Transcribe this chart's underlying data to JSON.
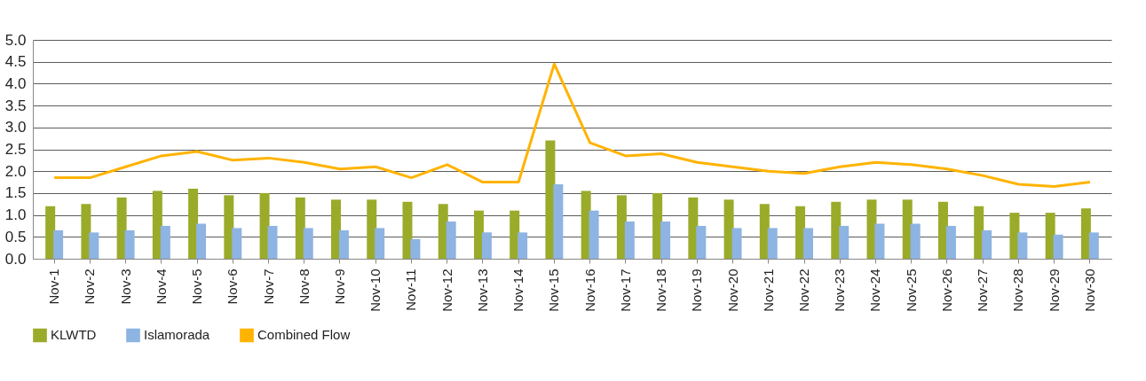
{
  "chart_data": {
    "type": "bar",
    "categories": [
      "Nov-1",
      "Nov-2",
      "Nov-3",
      "Nov-4",
      "Nov-5",
      "Nov-6",
      "Nov-7",
      "Nov-8",
      "Nov-9",
      "Nov-10",
      "Nov-11",
      "Nov-12",
      "Nov-13",
      "Nov-14",
      "Nov-15",
      "Nov-16",
      "Nov-17",
      "Nov-18",
      "Nov-19",
      "Nov-20",
      "Nov-21",
      "Nov-22",
      "Nov-23",
      "Nov-24",
      "Nov-25",
      "Nov-26",
      "Nov-27",
      "Nov-28",
      "Nov-29",
      "Nov-30"
    ],
    "series": [
      {
        "name": "KLWTD",
        "color": "#9aab2a",
        "values": [
          1.2,
          1.25,
          1.4,
          1.55,
          1.6,
          1.45,
          1.5,
          1.4,
          1.35,
          1.35,
          1.3,
          1.25,
          1.1,
          1.1,
          2.7,
          1.55,
          1.45,
          1.5,
          1.4,
          1.35,
          1.25,
          1.2,
          1.3,
          1.35,
          1.35,
          1.3,
          1.2,
          1.05,
          1.05,
          1.15
        ]
      },
      {
        "name": "Islamorada",
        "color": "#8db4e2",
        "values": [
          0.65,
          0.6,
          0.65,
          0.75,
          0.8,
          0.7,
          0.75,
          0.7,
          0.65,
          0.7,
          0.45,
          0.85,
          0.6,
          0.6,
          1.7,
          1.1,
          0.85,
          0.85,
          0.75,
          0.7,
          0.7,
          0.7,
          0.75,
          0.8,
          0.8,
          0.75,
          0.65,
          0.6,
          0.55,
          0.6
        ]
      },
      {
        "name": "Combined Flow",
        "type": "line",
        "color": "#ffb300",
        "values": [
          1.85,
          1.85,
          2.1,
          2.35,
          2.45,
          2.25,
          2.3,
          2.2,
          2.05,
          2.1,
          1.85,
          2.15,
          1.75,
          1.75,
          4.45,
          2.65,
          2.35,
          2.4,
          2.2,
          2.1,
          2.0,
          1.95,
          2.1,
          2.2,
          2.15,
          2.05,
          1.9,
          1.7,
          1.65,
          1.75
        ]
      }
    ],
    "ylim": [
      0,
      5
    ],
    "yticks": [
      {
        "value": 0,
        "label": "0.0"
      },
      {
        "value": 0.5,
        "label": "0.5"
      },
      {
        "value": 1,
        "label": "1.0"
      },
      {
        "value": 1.5,
        "label": "1.5"
      },
      {
        "value": 2,
        "label": "2.0"
      },
      {
        "value": 2.5,
        "label": "2.5"
      },
      {
        "value": 3,
        "label": "3.0"
      },
      {
        "value": 3.5,
        "label": "3.5"
      },
      {
        "value": 4,
        "label": "4.0"
      },
      {
        "value": 4.5,
        "label": "4.5"
      },
      {
        "value": 5,
        "label": "5.0"
      }
    ],
    "grid": "y",
    "legend": "bottom"
  }
}
